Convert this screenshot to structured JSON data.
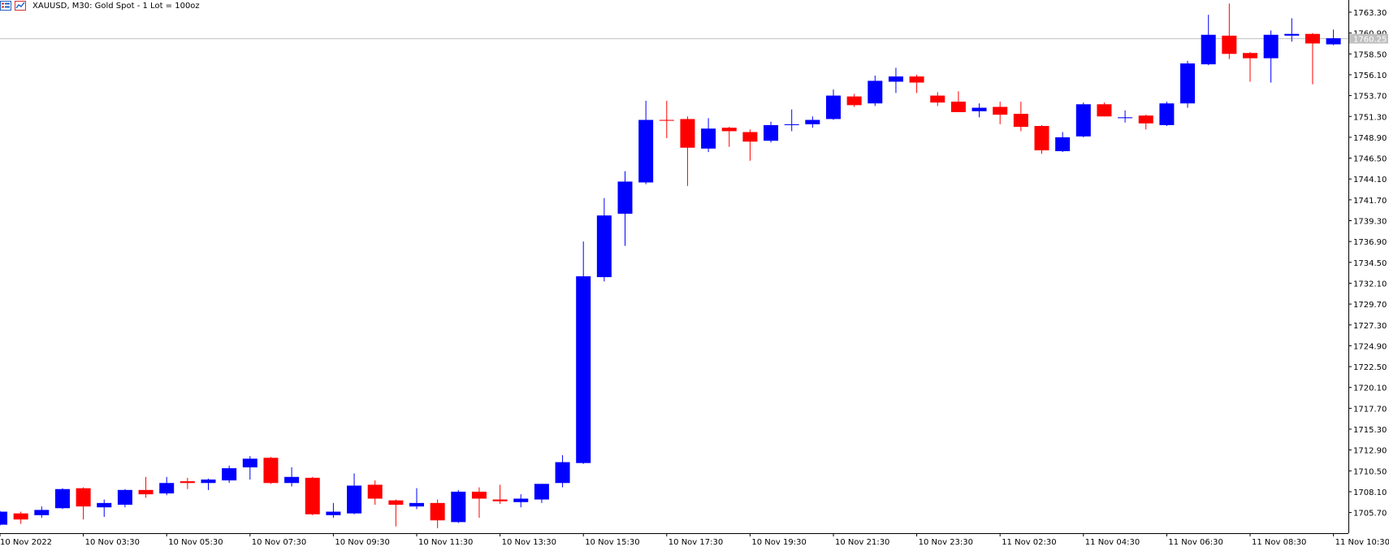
{
  "header": {
    "symbol_title": "XAUUSD, M30:  Gold  Spot - 1 Lot = 100oz"
  },
  "colors": {
    "bull": "#0000ff",
    "bear": "#ff0000",
    "background": "#ffffff",
    "axis": "#000000",
    "price_line": "#c0c0c0",
    "price_label_bg": "#c0c0c0"
  },
  "icons": [
    "chart-list-icon",
    "chart-window-icon"
  ],
  "chart_data": {
    "type": "candlestick",
    "title": "XAUUSD, M30:  Gold  Spot - 1 Lot = 100oz",
    "current_price": "1760.25",
    "y_ticks": [
      "1763.30",
      "1760.90",
      "1758.50",
      "1756.10",
      "1753.70",
      "1751.30",
      "1748.90",
      "1746.50",
      "1744.10",
      "1741.70",
      "1739.30",
      "1736.90",
      "1734.50",
      "1732.10",
      "1729.70",
      "1727.30",
      "1724.90",
      "1722.50",
      "1720.10",
      "1717.70",
      "1715.30",
      "1712.90",
      "1710.50",
      "1708.10",
      "1705.70"
    ],
    "x_ticks": [
      {
        "label": "10 Nov 2022",
        "index": 0
      },
      {
        "label": "10 Nov 03:30",
        "index": 4
      },
      {
        "label": "10 Nov 05:30",
        "index": 8
      },
      {
        "label": "10 Nov 07:30",
        "index": 12
      },
      {
        "label": "10 Nov 09:30",
        "index": 16
      },
      {
        "label": "10 Nov 11:30",
        "index": 20
      },
      {
        "label": "10 Nov 13:30",
        "index": 24
      },
      {
        "label": "10 Nov 15:30",
        "index": 28
      },
      {
        "label": "10 Nov 17:30",
        "index": 32
      },
      {
        "label": "10 Nov 19:30",
        "index": 36
      },
      {
        "label": "10 Nov 21:30",
        "index": 40
      },
      {
        "label": "10 Nov 23:30",
        "index": 44
      },
      {
        "label": "11 Nov 02:30",
        "index": 48
      },
      {
        "label": "11 Nov 04:30",
        "index": 52
      },
      {
        "label": "11 Nov 06:30",
        "index": 56
      },
      {
        "label": "11 Nov 08:30",
        "index": 60
      },
      {
        "label": "11 Nov 10:30",
        "index": 64
      }
    ],
    "ylim": [
      1703.5,
      1764.6
    ],
    "candles": [
      {
        "o": 1704.3,
        "h": 1705.9,
        "l": 1704.2,
        "c": 1705.8
      },
      {
        "o": 1705.6,
        "h": 1705.8,
        "l": 1704.4,
        "c": 1704.9
      },
      {
        "o": 1705.4,
        "h": 1706.4,
        "l": 1705.1,
        "c": 1706.0
      },
      {
        "o": 1706.2,
        "h": 1708.5,
        "l": 1706.1,
        "c": 1708.4
      },
      {
        "o": 1708.5,
        "h": 1708.6,
        "l": 1704.9,
        "c": 1706.4
      },
      {
        "o": 1706.3,
        "h": 1707.2,
        "l": 1705.2,
        "c": 1706.8
      },
      {
        "o": 1706.6,
        "h": 1708.4,
        "l": 1706.3,
        "c": 1708.3
      },
      {
        "o": 1708.3,
        "h": 1709.8,
        "l": 1707.4,
        "c": 1707.8
      },
      {
        "o": 1707.9,
        "h": 1709.8,
        "l": 1707.7,
        "c": 1709.1
      },
      {
        "o": 1709.3,
        "h": 1709.7,
        "l": 1708.4,
        "c": 1709.1
      },
      {
        "o": 1709.1,
        "h": 1709.6,
        "l": 1708.3,
        "c": 1709.5
      },
      {
        "o": 1709.4,
        "h": 1711.1,
        "l": 1709.1,
        "c": 1710.8
      },
      {
        "o": 1710.9,
        "h": 1712.2,
        "l": 1709.5,
        "c": 1711.9
      },
      {
        "o": 1712.0,
        "h": 1712.1,
        "l": 1709.0,
        "c": 1709.1
      },
      {
        "o": 1709.1,
        "h": 1710.9,
        "l": 1708.7,
        "c": 1709.8
      },
      {
        "o": 1709.7,
        "h": 1709.8,
        "l": 1705.4,
        "c": 1705.5
      },
      {
        "o": 1705.4,
        "h": 1706.8,
        "l": 1705.1,
        "c": 1705.8
      },
      {
        "o": 1705.6,
        "h": 1710.2,
        "l": 1705.5,
        "c": 1708.8
      },
      {
        "o": 1708.9,
        "h": 1709.4,
        "l": 1706.6,
        "c": 1707.3
      },
      {
        "o": 1707.1,
        "h": 1707.2,
        "l": 1704.1,
        "c": 1706.6
      },
      {
        "o": 1706.4,
        "h": 1708.5,
        "l": 1706.1,
        "c": 1706.8
      },
      {
        "o": 1706.8,
        "h": 1707.2,
        "l": 1703.9,
        "c": 1704.8
      },
      {
        "o": 1704.6,
        "h": 1708.3,
        "l": 1704.5,
        "c": 1708.1
      },
      {
        "o": 1708.1,
        "h": 1708.6,
        "l": 1705.1,
        "c": 1707.3
      },
      {
        "o": 1707.2,
        "h": 1708.9,
        "l": 1706.7,
        "c": 1707.0
      },
      {
        "o": 1706.9,
        "h": 1707.8,
        "l": 1706.3,
        "c": 1707.3
      },
      {
        "o": 1707.2,
        "h": 1709.0,
        "l": 1706.8,
        "c": 1709.0
      },
      {
        "o": 1709.1,
        "h": 1712.3,
        "l": 1708.6,
        "c": 1711.5
      },
      {
        "o": 1711.4,
        "h": 1736.9,
        "l": 1711.3,
        "c": 1732.9
      },
      {
        "o": 1732.8,
        "h": 1741.9,
        "l": 1732.3,
        "c": 1739.9
      },
      {
        "o": 1740.1,
        "h": 1745.0,
        "l": 1736.4,
        "c": 1743.8
      },
      {
        "o": 1743.7,
        "h": 1753.1,
        "l": 1743.5,
        "c": 1750.9
      },
      {
        "o": 1750.9,
        "h": 1753.1,
        "l": 1748.8,
        "c": 1750.8
      },
      {
        "o": 1751.0,
        "h": 1751.3,
        "l": 1743.3,
        "c": 1747.7
      },
      {
        "o": 1747.6,
        "h": 1751.1,
        "l": 1747.2,
        "c": 1749.9
      },
      {
        "o": 1750.0,
        "h": 1750.1,
        "l": 1747.8,
        "c": 1749.6
      },
      {
        "o": 1749.5,
        "h": 1749.8,
        "l": 1746.2,
        "c": 1748.4
      },
      {
        "o": 1748.5,
        "h": 1750.7,
        "l": 1748.3,
        "c": 1750.3
      },
      {
        "o": 1750.3,
        "h": 1752.1,
        "l": 1749.6,
        "c": 1750.4
      },
      {
        "o": 1750.4,
        "h": 1751.3,
        "l": 1750.0,
        "c": 1750.9
      },
      {
        "o": 1751.0,
        "h": 1754.4,
        "l": 1750.9,
        "c": 1753.7
      },
      {
        "o": 1753.6,
        "h": 1753.9,
        "l": 1752.4,
        "c": 1752.6
      },
      {
        "o": 1752.8,
        "h": 1756.0,
        "l": 1752.5,
        "c": 1755.4
      },
      {
        "o": 1755.3,
        "h": 1756.9,
        "l": 1754.0,
        "c": 1755.9
      },
      {
        "o": 1755.9,
        "h": 1756.1,
        "l": 1754.0,
        "c": 1755.2
      },
      {
        "o": 1753.7,
        "h": 1754.1,
        "l": 1752.5,
        "c": 1752.9
      },
      {
        "o": 1753.0,
        "h": 1754.2,
        "l": 1751.8,
        "c": 1751.8
      },
      {
        "o": 1751.9,
        "h": 1752.8,
        "l": 1751.2,
        "c": 1752.3
      },
      {
        "o": 1752.4,
        "h": 1753.0,
        "l": 1750.4,
        "c": 1751.5
      },
      {
        "o": 1751.6,
        "h": 1753.0,
        "l": 1749.6,
        "c": 1750.1
      },
      {
        "o": 1750.2,
        "h": 1750.3,
        "l": 1747.0,
        "c": 1747.4
      },
      {
        "o": 1747.3,
        "h": 1749.5,
        "l": 1747.2,
        "c": 1748.9
      },
      {
        "o": 1749.0,
        "h": 1752.9,
        "l": 1748.9,
        "c": 1752.7
      },
      {
        "o": 1752.7,
        "h": 1752.9,
        "l": 1751.3,
        "c": 1751.3
      },
      {
        "o": 1751.1,
        "h": 1752.0,
        "l": 1750.6,
        "c": 1751.2
      },
      {
        "o": 1751.4,
        "h": 1751.5,
        "l": 1749.8,
        "c": 1750.5
      },
      {
        "o": 1750.3,
        "h": 1753.0,
        "l": 1750.2,
        "c": 1752.8
      },
      {
        "o": 1752.8,
        "h": 1757.7,
        "l": 1752.3,
        "c": 1757.4
      },
      {
        "o": 1757.3,
        "h": 1763.0,
        "l": 1757.2,
        "c": 1760.7
      },
      {
        "o": 1760.6,
        "h": 1764.3,
        "l": 1757.9,
        "c": 1758.5
      },
      {
        "o": 1758.6,
        "h": 1758.7,
        "l": 1755.3,
        "c": 1758.0
      },
      {
        "o": 1758.0,
        "h": 1761.2,
        "l": 1755.2,
        "c": 1760.7
      },
      {
        "o": 1760.6,
        "h": 1762.6,
        "l": 1759.9,
        "c": 1760.8
      },
      {
        "o": 1760.8,
        "h": 1760.9,
        "l": 1755.0,
        "c": 1759.7
      },
      {
        "o": 1759.6,
        "h": 1761.3,
        "l": 1759.5,
        "c": 1760.3
      }
    ]
  }
}
